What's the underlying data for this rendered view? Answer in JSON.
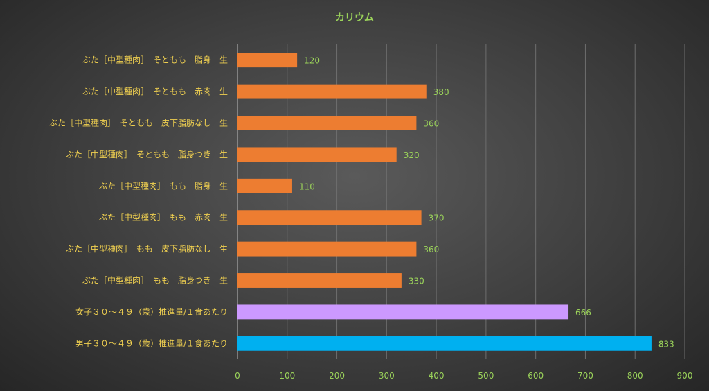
{
  "chart_data": {
    "type": "bar",
    "orientation": "horizontal",
    "title": "カリウム",
    "categories": [
      "ぶた［中型種肉］　そともも　脂身　生",
      "ぶた［中型種肉］　そともも　赤肉　生",
      "ぶた［中型種肉］　そともも　皮下脂肪なし　生",
      "ぶた［中型種肉］　そともも　脂身つき　生",
      "ぶた［中型種肉］　もも　脂身　生",
      "ぶた［中型種肉］　もも　赤肉　生",
      "ぶた［中型種肉］　もも　皮下脂肪なし　生",
      "ぶた［中型種肉］　もも　脂身つき　生",
      "女子３０～４９（歳）推進量/１食あたり",
      "男子３０～４９（歳）推進量/１食あたり"
    ],
    "values": [
      120,
      380,
      360,
      320,
      110,
      370,
      360,
      330,
      666,
      833
    ],
    "bar_colors": [
      "#ed7d31",
      "#ed7d31",
      "#ed7d31",
      "#ed7d31",
      "#ed7d31",
      "#ed7d31",
      "#ed7d31",
      "#ed7d31",
      "#cc99ff",
      "#00b0f0"
    ],
    "xlim": [
      0,
      900
    ],
    "x_ticks": [
      0,
      100,
      200,
      300,
      400,
      500,
      600,
      700,
      800,
      900
    ],
    "grid": "vertical",
    "xlabel": "",
    "ylabel": ""
  }
}
